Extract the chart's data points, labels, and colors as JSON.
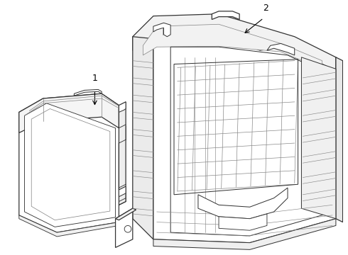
{
  "background_color": "#ffffff",
  "line_color": "#333333",
  "line_color_light": "#888888",
  "line_width": 0.9,
  "label1": "1",
  "label2": "2"
}
